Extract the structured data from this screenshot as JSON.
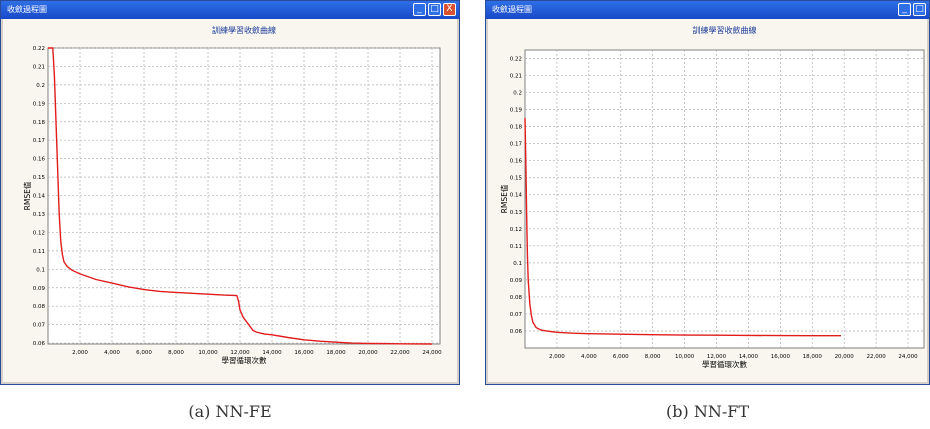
{
  "panels": [
    {
      "caption": "(a)  NN-FE",
      "window_title": "收斂過程圖",
      "buttons": [
        "minimize-icon",
        "maximize-icon",
        "close-icon"
      ],
      "chart_data": {
        "type": "line",
        "title": "訓練學習收斂曲線",
        "xlabel": "學習循環次數",
        "ylabel": "RMSE值",
        "xlim": [
          0,
          24500
        ],
        "ylim": [
          0.0595,
          0.22
        ],
        "x_ticks": [
          2000,
          4000,
          6000,
          8000,
          10000,
          12000,
          14000,
          16000,
          18000,
          20000,
          22000,
          24000
        ],
        "x_tick_labels": [
          "2,000",
          "4,000",
          "6,000",
          "8,000",
          "10,000",
          "12,000",
          "14,000",
          "16,000",
          "18,000",
          "20,000",
          "22,000",
          "24,000"
        ],
        "y_ticks": [
          0.06,
          0.07,
          0.08,
          0.09,
          0.1,
          0.11,
          0.12,
          0.13,
          0.14,
          0.15,
          0.16,
          0.17,
          0.18,
          0.19,
          0.2,
          0.21,
          0.22
        ],
        "y_tick_labels": [
          "0.06",
          "0.07",
          "0.08",
          "0.09",
          "0.1",
          "0.11",
          "0.12",
          "0.13",
          "0.14",
          "0.15",
          "0.16",
          "0.17",
          "0.18",
          "0.19",
          "0.2",
          "0.21",
          "0.22"
        ],
        "grid": true,
        "line_color": "#e11c1c",
        "series": [
          {
            "x": [
              0,
              300,
              400,
              500,
              600,
              700,
              800,
              900,
              1000,
              1200,
              1500,
              2000,
              3000,
              4000,
              5000,
              6000,
              7000,
              8000,
              9000,
              10000,
              11000,
              11800,
              11900,
              12000,
              12200,
              12500,
              12800,
              13000,
              13500,
              14000,
              15000,
              16000,
              17000,
              18000,
              19000,
              20000,
              21000,
              22000,
              24000
            ],
            "y": [
              0.22,
              0.22,
              0.205,
              0.18,
              0.155,
              0.13,
              0.115,
              0.108,
              0.104,
              0.1015,
              0.0995,
              0.0975,
              0.0945,
              0.0925,
              0.0905,
              0.089,
              0.088,
              0.0875,
              0.087,
              0.0865,
              0.086,
              0.0858,
              0.083,
              0.078,
              0.074,
              0.0705,
              0.067,
              0.066,
              0.065,
              0.0645,
              0.063,
              0.0618,
              0.061,
              0.0605,
              0.06,
              0.0598,
              0.0597,
              0.0596,
              0.0595
            ]
          }
        ]
      }
    },
    {
      "caption": "(b)  NN-FT",
      "window_title": "收斂過程圖",
      "buttons": [
        "minimize-icon",
        "maximize-icon"
      ],
      "chart_data": {
        "type": "line",
        "title": "訓練學習收斂曲線",
        "xlabel": "學習循環次數",
        "ylabel": "RMSE值",
        "xlim": [
          0,
          25000
        ],
        "ylim": [
          0.05,
          0.225
        ],
        "x_ticks": [
          2000,
          4000,
          6000,
          8000,
          10000,
          12000,
          14000,
          16000,
          18000,
          20000,
          22000,
          24000
        ],
        "x_tick_labels": [
          "2,000",
          "4,000",
          "6,000",
          "8,000",
          "10,000",
          "12,000",
          "14,000",
          "16,000",
          "18,000",
          "20,000",
          "22,000",
          "24,000"
        ],
        "y_ticks": [
          0.06,
          0.07,
          0.08,
          0.09,
          0.1,
          0.11,
          0.12,
          0.13,
          0.14,
          0.15,
          0.16,
          0.17,
          0.18,
          0.19,
          0.2,
          0.21,
          0.22
        ],
        "y_tick_labels": [
          "0.06",
          "0.07",
          "0.08",
          "0.09",
          "0.1",
          "0.11",
          "0.12",
          "0.13",
          "0.14",
          "0.15",
          "0.16",
          "0.17",
          "0.18",
          "0.19",
          "0.2",
          "0.21",
          "0.22"
        ],
        "grid": true,
        "line_color": "#e11c1c",
        "series": [
          {
            "x": [
              0,
              50,
              100,
              150,
              200,
              300,
              400,
              500,
              700,
              1000,
              1500,
              2000,
              3000,
              4000,
              6000,
              8000,
              10000,
              12000,
              14000,
              16000,
              18000,
              19800
            ],
            "y": [
              0.185,
              0.16,
              0.13,
              0.105,
              0.09,
              0.076,
              0.069,
              0.065,
              0.062,
              0.0605,
              0.0598,
              0.0592,
              0.0587,
              0.0584,
              0.0581,
              0.0578,
              0.0576,
              0.0575,
              0.0574,
              0.0573,
              0.0572,
              0.0572
            ]
          }
        ]
      }
    }
  ]
}
